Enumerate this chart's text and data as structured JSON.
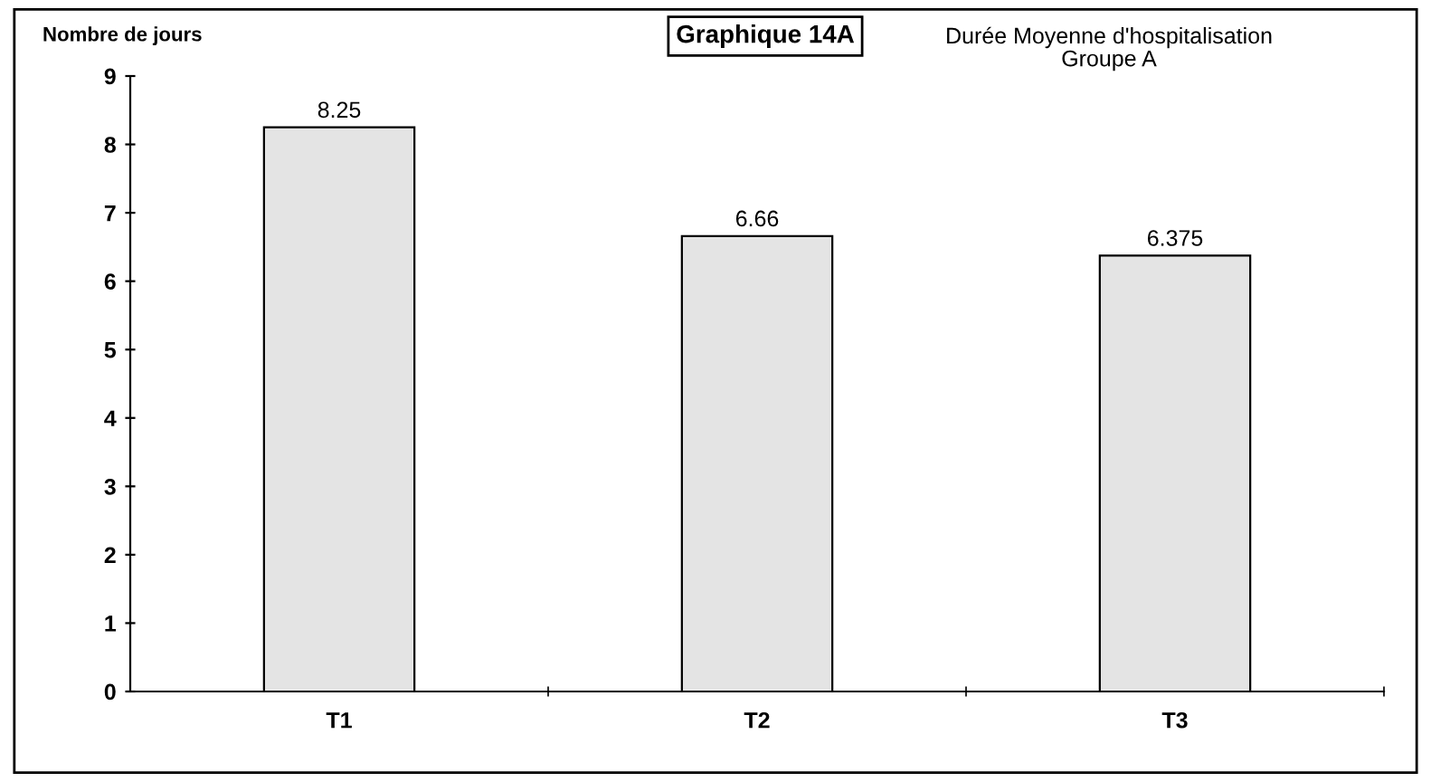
{
  "chart_data": {
    "type": "bar",
    "title": "Graphique 14A",
    "subtitle": "Durée Moyenne d'hospitalisation\nGroupe A",
    "ylabel": "Nombre de jours",
    "categories": [
      "T1",
      "T2",
      "T3"
    ],
    "values": [
      8.25,
      6.66,
      6.375
    ],
    "value_labels": [
      "8.25",
      "6.66",
      "6.375"
    ],
    "color": "#e4e4e4",
    "ylim": [
      0,
      9
    ],
    "yticks": [
      0,
      1,
      2,
      3,
      4,
      5,
      6,
      7,
      8,
      9
    ],
    "grid": false,
    "legend": false
  }
}
